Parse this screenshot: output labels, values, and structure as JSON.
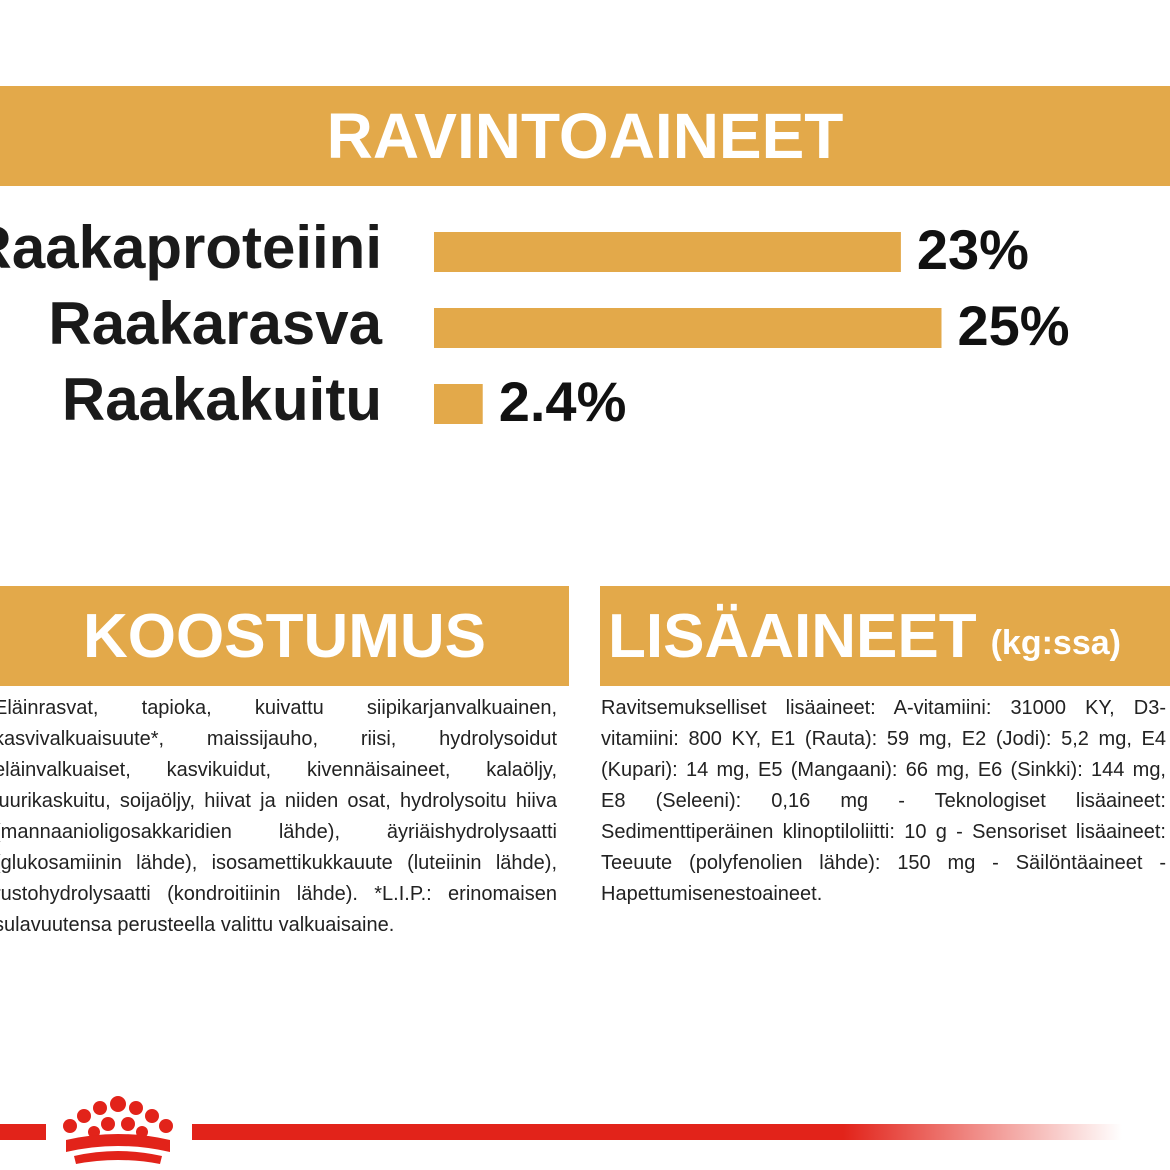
{
  "chart_data": {
    "type": "bar",
    "title": "RAVINTOAINEET",
    "categories": [
      "Raakaproteiini",
      "Raakarasva",
      "Raakakuitu"
    ],
    "values": [
      23,
      25,
      2.4
    ],
    "value_labels": [
      "23%",
      "25%",
      "2.4%"
    ],
    "color": "#e3a94a"
  },
  "composition": {
    "title": "KOOSTUMUS",
    "text": "Eläinrasvat, tapioka, kuivattu siipikarjanvalkuainen, kasvivalkuaisuute*, maissijauho, riisi, hydrolysoidut eläinvalkuaiset, kasvikuidut, kivennäisaineet, kalaöljy, juurikaskuitu, soijaöljy, hiivat ja niiden osat, hydrolysoitu hiiva (mannaanioligosakkaridien lähde), äyriäishydrolysaatti (glukosamiinin lähde), isosamettikukkauute (luteiinin lähde), rustohydrolysaatti (kondroitiinin lähde). *L.I.P.: erinomaisen sulavuutensa perusteella valittu valkuaisaine."
  },
  "additives": {
    "title": "LISÄAINEET",
    "unit": "(kg:ssa)",
    "text": "Ravitsemukselliset lisäaineet: A-vitamiini: 31000 KY, D3-vitamiini: 800 KY, E1 (Rauta): 59 mg, E2 (Jodi): 5,2 mg, E4 (Kupari): 14 mg, E5 (Mangaani): 66 mg, E6 (Sinkki): 144 mg, E8 (Seleeni): 0,16 mg - Teknologiset lisäaineet: Sedimenttiperäinen klinoptiloliitti: 10 g - Sensoriset lisäaineet: Teeuute (polyfenolien lähde): 150 mg - Säilöntäaineet - Hapettumisenestoaineet."
  }
}
